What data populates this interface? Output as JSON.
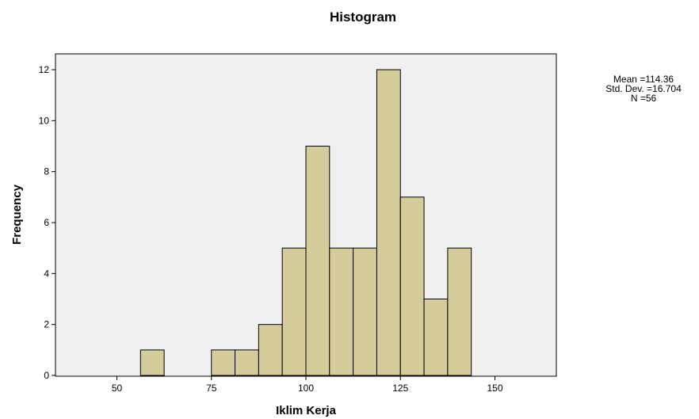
{
  "chart_data": {
    "type": "bar",
    "title": "Histogram",
    "xlabel": "Iklim Kerja",
    "ylabel": "Frequency",
    "bin_width": 6.25,
    "x_ticks": [
      50,
      75,
      100,
      125,
      150
    ],
    "y_ticks": [
      0,
      2,
      4,
      6,
      8,
      10,
      12
    ],
    "xlim": [
      34.4,
      165.6
    ],
    "ylim": [
      0,
      12.5
    ],
    "bins": [
      {
        "start": 56.25,
        "count": 1
      },
      {
        "start": 75.0,
        "count": 1
      },
      {
        "start": 81.25,
        "count": 1
      },
      {
        "start": 87.5,
        "count": 2
      },
      {
        "start": 93.75,
        "count": 5
      },
      {
        "start": 100.0,
        "count": 9
      },
      {
        "start": 106.25,
        "count": 5
      },
      {
        "start": 112.5,
        "count": 5
      },
      {
        "start": 118.75,
        "count": 12
      },
      {
        "start": 125.0,
        "count": 7
      },
      {
        "start": 131.25,
        "count": 3
      },
      {
        "start": 137.5,
        "count": 5
      }
    ],
    "stats": {
      "mean": "Mean =114.36",
      "std_dev": "Std. Dev. =16.704",
      "n": "N =56"
    },
    "colors": {
      "bar_fill": "#d4cc9a",
      "bar_stroke": "#000000",
      "plot_background": "#f0f0f0"
    }
  }
}
